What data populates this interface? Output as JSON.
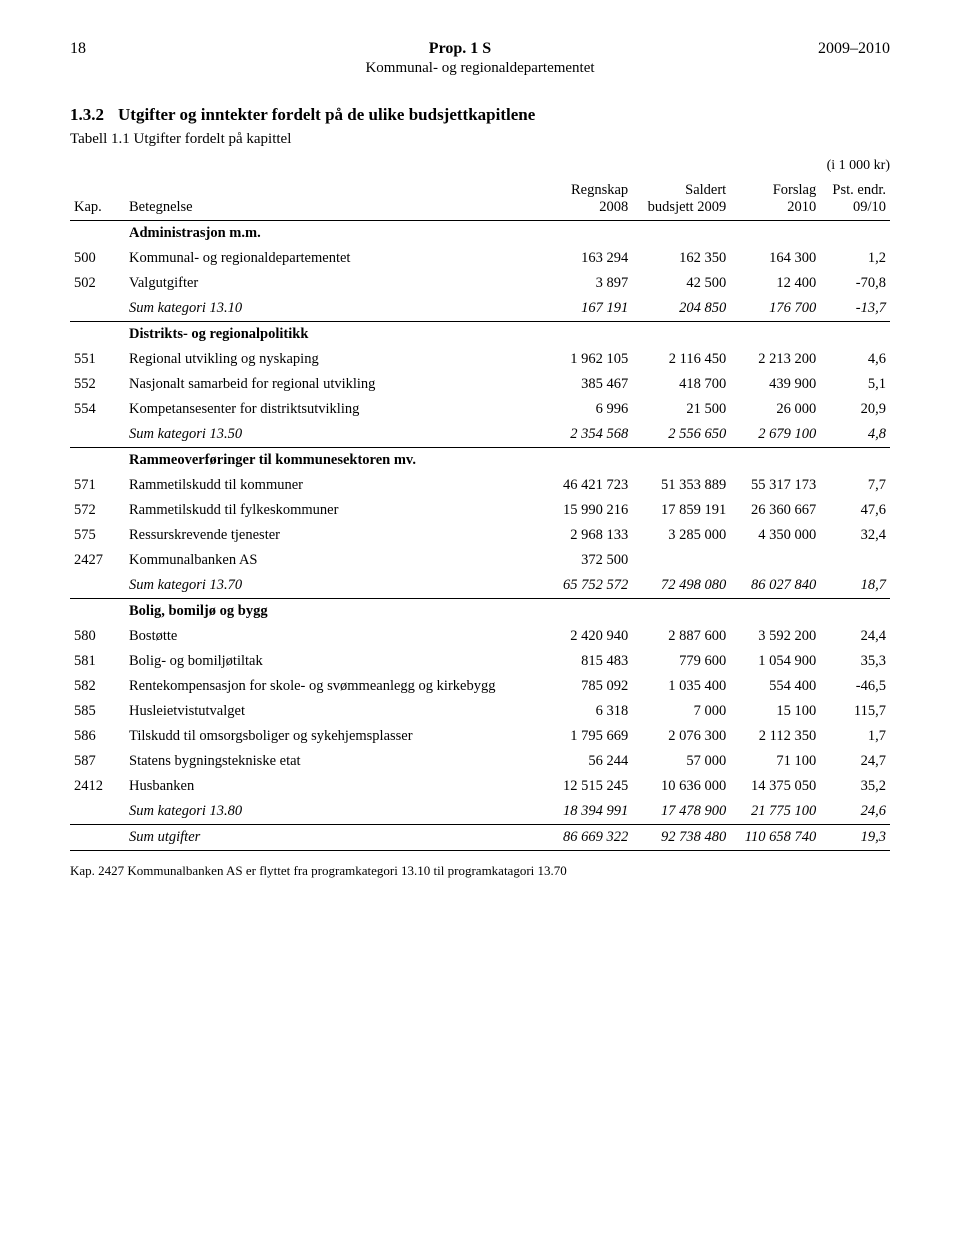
{
  "header": {
    "pageNumber": "18",
    "docTitle": "Prop. 1 S",
    "yearRange": "2009–2010",
    "subTitle": "Kommunal- og regionaldepartementet"
  },
  "section": {
    "number": "1.3.2",
    "title": "Utgifter og inntekter fordelt på de ulike budsjettkapitlene"
  },
  "tableCaption": "Tabell 1.1 Utgifter fordelt på kapittel",
  "unitNote": "(i 1 000 kr)",
  "columns": {
    "kap": "Kap.",
    "betegnelse": "Betegnelse",
    "regnskap": "Regnskap\n2008",
    "saldert": "Saldert\nbudsjett 2009",
    "forslag": "Forslag\n2010",
    "endr": "Pst. endr.\n09/10"
  },
  "rows": [
    {
      "type": "group",
      "bet": "Administrasjon m.m."
    },
    {
      "type": "data",
      "kap": "500",
      "bet": "Kommunal- og regionaldepartementet",
      "c1": "163 294",
      "c2": "162 350",
      "c3": "164 300",
      "c4": "1,2"
    },
    {
      "type": "data",
      "kap": "502",
      "bet": "Valgutgifter",
      "c1": "3 897",
      "c2": "42 500",
      "c3": "12 400",
      "c4": "-70,8"
    },
    {
      "type": "sum",
      "underline": true,
      "bet": "Sum kategori 13.10",
      "c1": "167 191",
      "c2": "204 850",
      "c3": "176 700",
      "c4": "-13,7"
    },
    {
      "type": "group",
      "bet": "Distrikts- og regionalpolitikk"
    },
    {
      "type": "data",
      "kap": "551",
      "bet": "Regional utvikling og nyskaping",
      "c1": "1 962 105",
      "c2": "2 116 450",
      "c3": "2 213 200",
      "c4": "4,6"
    },
    {
      "type": "data",
      "kap": "552",
      "bet": "Nasjonalt samarbeid for regional utvikling",
      "c1": "385 467",
      "c2": "418 700",
      "c3": "439 900",
      "c4": "5,1"
    },
    {
      "type": "data",
      "kap": "554",
      "bet": "Kompetansesenter for distriktsutvikling",
      "c1": "6 996",
      "c2": "21 500",
      "c3": "26 000",
      "c4": "20,9"
    },
    {
      "type": "sum",
      "underline": true,
      "bet": "Sum kategori 13.50",
      "c1": "2 354 568",
      "c2": "2 556 650",
      "c3": "2 679 100",
      "c4": "4,8"
    },
    {
      "type": "group",
      "bet": "Rammeoverføringer til kommunesektoren mv."
    },
    {
      "type": "data",
      "kap": "571",
      "bet": "Rammetilskudd til kommuner",
      "c1": "46 421 723",
      "c2": "51 353 889",
      "c3": "55 317 173",
      "c4": "7,7"
    },
    {
      "type": "data",
      "kap": "572",
      "bet": "Rammetilskudd til fylkeskommuner",
      "c1": "15 990 216",
      "c2": "17 859 191",
      "c3": "26 360 667",
      "c4": "47,6"
    },
    {
      "type": "data",
      "kap": "575",
      "bet": "Ressurskrevende tjenester",
      "c1": "2 968 133",
      "c2": "3 285 000",
      "c3": "4 350 000",
      "c4": "32,4"
    },
    {
      "type": "data",
      "kap": "2427",
      "bet": "Kommunalbanken AS",
      "c1": "372 500",
      "c2": "",
      "c3": "",
      "c4": ""
    },
    {
      "type": "sum",
      "underline": true,
      "bet": "Sum kategori 13.70",
      "c1": "65 752 572",
      "c2": "72 498 080",
      "c3": "86 027 840",
      "c4": "18,7"
    },
    {
      "type": "group",
      "bet": "Bolig, bomiljø og bygg"
    },
    {
      "type": "data",
      "kap": "580",
      "bet": "Bostøtte",
      "c1": "2 420 940",
      "c2": "2 887 600",
      "c3": "3 592 200",
      "c4": "24,4"
    },
    {
      "type": "data",
      "kap": "581",
      "bet": "Bolig- og bomiljøtiltak",
      "c1": "815 483",
      "c2": "779 600",
      "c3": "1 054 900",
      "c4": "35,3"
    },
    {
      "type": "data",
      "kap": "582",
      "bet": "Rentekompensasjon for skole- og svømmeanlegg og kirkebygg",
      "c1": "785 092",
      "c2": "1 035 400",
      "c3": "554 400",
      "c4": "-46,5"
    },
    {
      "type": "data",
      "kap": "585",
      "bet": "Husleietvistutvalget",
      "c1": "6 318",
      "c2": "7 000",
      "c3": "15 100",
      "c4": "115,7"
    },
    {
      "type": "data",
      "kap": "586",
      "bet": "Tilskudd til omsorgsboliger og sykehjemsplasser",
      "c1": "1 795 669",
      "c2": "2 076 300",
      "c3": "2 112 350",
      "c4": "1,7"
    },
    {
      "type": "data",
      "kap": "587",
      "bet": "Statens bygningstekniske etat",
      "c1": "56 244",
      "c2": "57 000",
      "c3": "71 100",
      "c4": "24,7"
    },
    {
      "type": "data",
      "kap": "2412",
      "bet": "Husbanken",
      "c1": "12 515 245",
      "c2": "10 636 000",
      "c3": "14 375 050",
      "c4": "35,2"
    },
    {
      "type": "sum",
      "underline": true,
      "bet": "Sum kategori 13.80",
      "c1": "18 394 991",
      "c2": "17 478 900",
      "c3": "21 775 100",
      "c4": "24,6"
    },
    {
      "type": "sumfinal",
      "underline": true,
      "bet": "Sum utgifter",
      "c1": "86 669 322",
      "c2": "92 738 480",
      "c3": "110 658 740",
      "c4": "19,3"
    }
  ],
  "footnote": "Kap. 2427 Kommunalbanken AS er flyttet fra programkategori 13.10 til programkatagori 13.70"
}
